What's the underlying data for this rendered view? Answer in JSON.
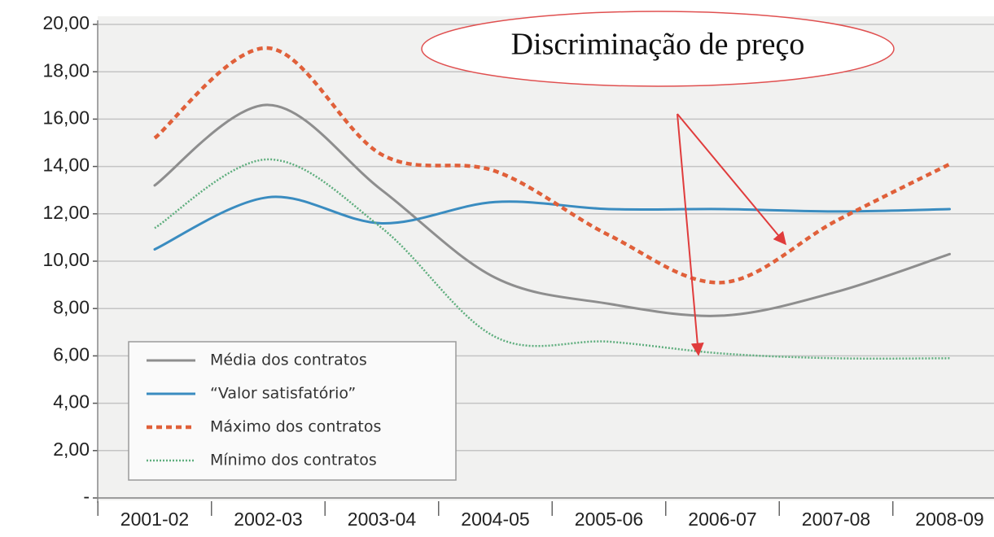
{
  "chart_data": {
    "type": "line",
    "annotation": "Discriminação de preço",
    "categories": [
      "2001-02",
      "2002-03",
      "2003-04",
      "2004-05",
      "2005-06",
      "2006-07",
      "2007-08",
      "2008-09"
    ],
    "series": [
      {
        "name": "Média dos contratos",
        "color": "#8e8e8e",
        "style": "solid",
        "values": [
          13.2,
          16.6,
          13.0,
          9.3,
          8.2,
          7.7,
          8.7,
          10.3
        ]
      },
      {
        "name": "“Valor satisfatório”",
        "color": "#3a8cc0",
        "style": "solid",
        "values": [
          10.5,
          12.7,
          11.6,
          12.5,
          12.2,
          12.2,
          12.1,
          12.2
        ]
      },
      {
        "name": "Máximo dos contratos",
        "color": "#e0603a",
        "style": "dashed",
        "values": [
          15.2,
          19.0,
          14.5,
          13.8,
          11.1,
          9.1,
          11.7,
          14.1
        ]
      },
      {
        "name": "Mínimo dos contratos",
        "color": "#5fae7e",
        "style": "dotted",
        "values": [
          11.4,
          14.3,
          11.4,
          6.8,
          6.6,
          6.1,
          5.9,
          5.9
        ]
      }
    ],
    "ylim": [
      0,
      20
    ],
    "yticks": [
      {
        "value": 0,
        "label": "-"
      },
      {
        "value": 2,
        "label": "2,00"
      },
      {
        "value": 4,
        "label": "4,00"
      },
      {
        "value": 6,
        "label": "6,00"
      },
      {
        "value": 8,
        "label": "8,00"
      },
      {
        "value": 10,
        "label": "10,00"
      },
      {
        "value": 12,
        "label": "12,00"
      },
      {
        "value": 14,
        "label": "14,00"
      },
      {
        "value": 16,
        "label": "16,00"
      },
      {
        "value": 18,
        "label": "18,00"
      },
      {
        "value": 20,
        "label": "20,00"
      }
    ],
    "grid": true
  }
}
